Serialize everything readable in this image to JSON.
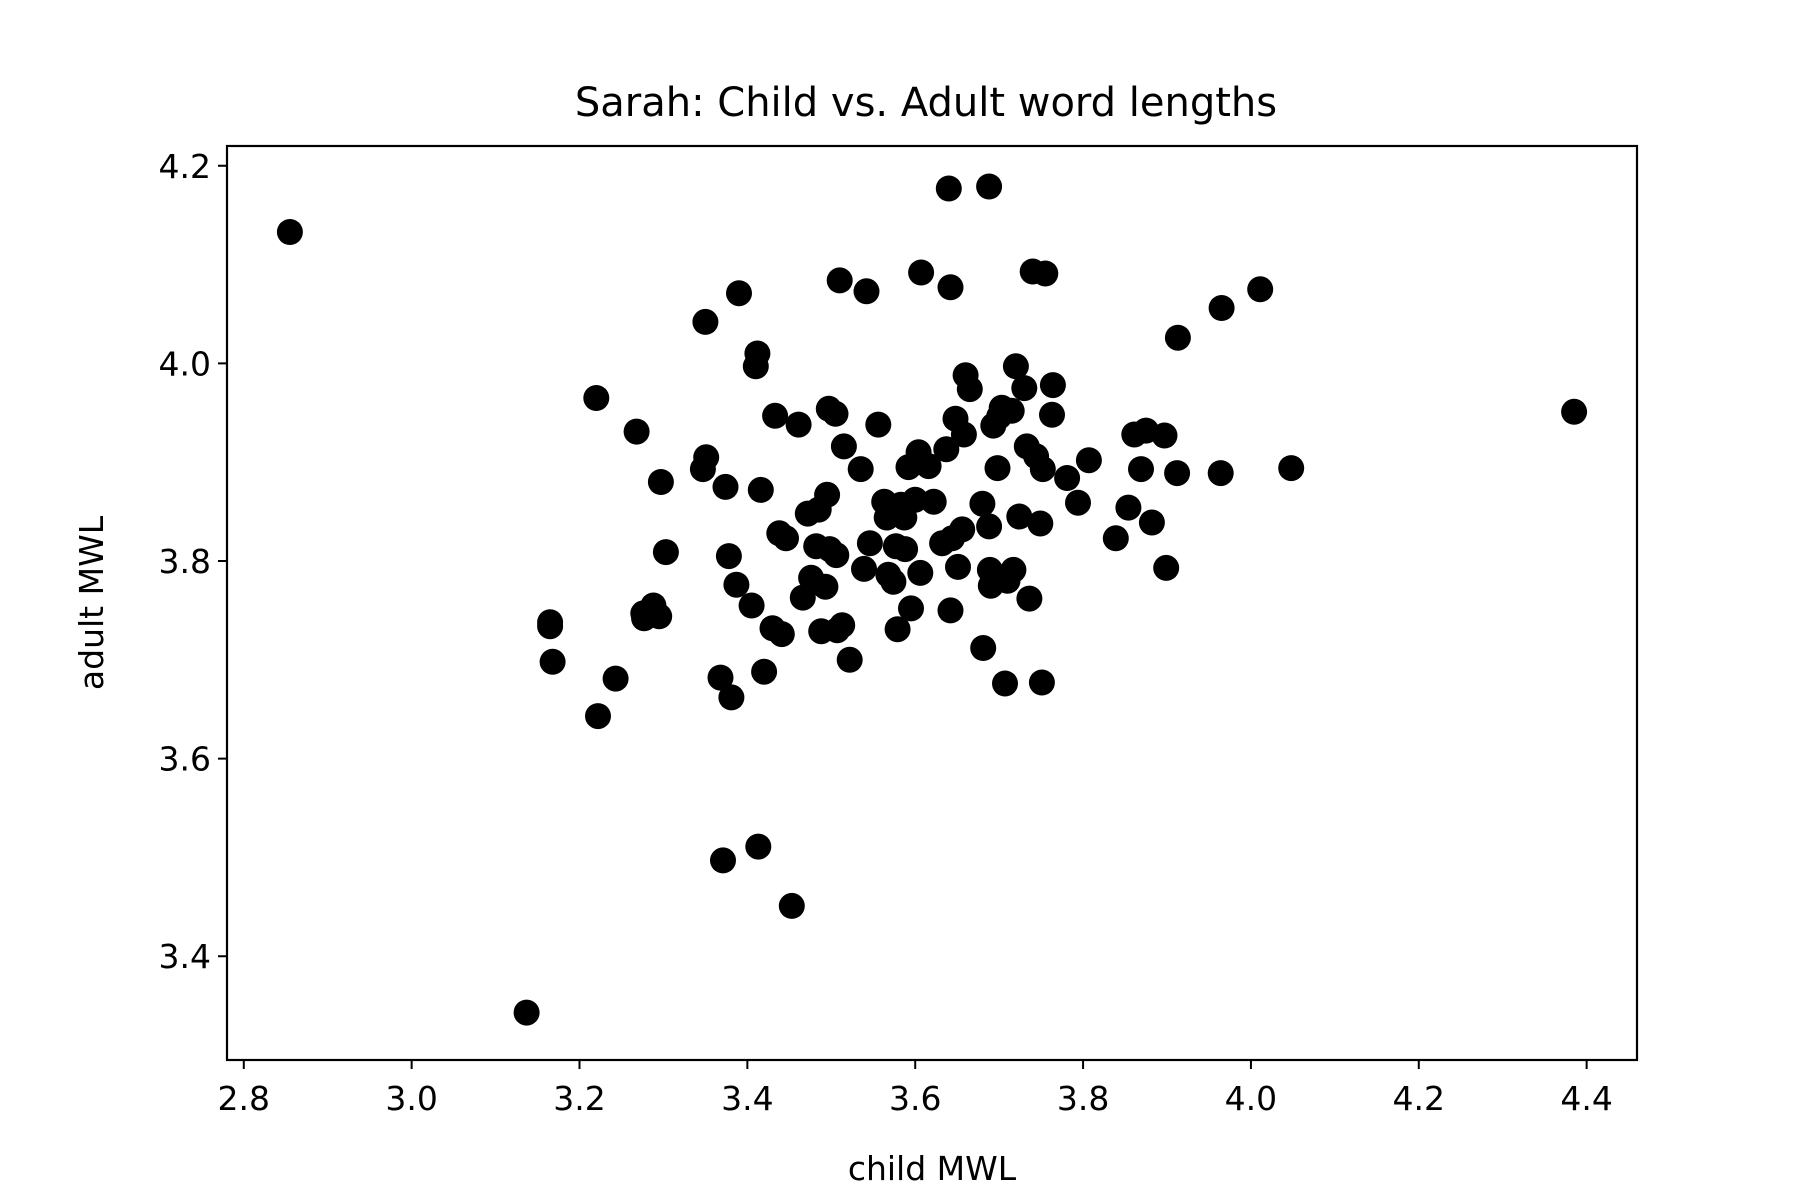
{
  "chart_data": {
    "type": "scatter",
    "title": "Sarah: Child vs. Adult word lengths",
    "xlabel": "child MWL",
    "ylabel": "adult MWL",
    "xlim": [
      2.78,
      4.46
    ],
    "ylim": [
      3.295,
      4.22
    ],
    "xticks": [
      "2.8",
      "3.0",
      "3.2",
      "3.4",
      "3.6",
      "3.8",
      "4.0",
      "4.2",
      "4.4"
    ],
    "yticks": [
      "3.4",
      "3.6",
      "3.8",
      "4.0",
      "4.2"
    ],
    "grid": false,
    "marker_color": "#000000",
    "points": [
      [
        2.855,
        4.133
      ],
      [
        3.137,
        3.343
      ],
      [
        3.165,
        3.738
      ],
      [
        3.165,
        3.734
      ],
      [
        3.168,
        3.698
      ],
      [
        3.22,
        3.965
      ],
      [
        3.222,
        3.643
      ],
      [
        3.243,
        3.681
      ],
      [
        3.268,
        3.931
      ],
      [
        3.276,
        3.747
      ],
      [
        3.277,
        3.742
      ],
      [
        3.288,
        3.755
      ],
      [
        3.295,
        3.744
      ],
      [
        3.297,
        3.88
      ],
      [
        3.303,
        3.809
      ],
      [
        3.347,
        3.893
      ],
      [
        3.35,
        4.042
      ],
      [
        3.351,
        3.905
      ],
      [
        3.368,
        3.682
      ],
      [
        3.371,
        3.497
      ],
      [
        3.374,
        3.875
      ],
      [
        3.378,
        3.805
      ],
      [
        3.381,
        3.662
      ],
      [
        3.387,
        3.776
      ],
      [
        3.39,
        4.071
      ],
      [
        3.405,
        3.755
      ],
      [
        3.41,
        3.997
      ],
      [
        3.412,
        4.01
      ],
      [
        3.413,
        3.511
      ],
      [
        3.416,
        3.872
      ],
      [
        3.42,
        3.688
      ],
      [
        3.43,
        3.732
      ],
      [
        3.433,
        3.947
      ],
      [
        3.438,
        3.828
      ],
      [
        3.441,
        3.726
      ],
      [
        3.446,
        3.823
      ],
      [
        3.453,
        3.451
      ],
      [
        3.461,
        3.938
      ],
      [
        3.466,
        3.763
      ],
      [
        3.472,
        3.848
      ],
      [
        3.476,
        3.783
      ],
      [
        3.482,
        3.815
      ],
      [
        3.485,
        3.852
      ],
      [
        3.488,
        3.729
      ],
      [
        3.493,
        3.774
      ],
      [
        3.495,
        3.867
      ],
      [
        3.497,
        3.954
      ],
      [
        3.498,
        3.812
      ],
      [
        3.505,
        3.949
      ],
      [
        3.506,
        3.806
      ],
      [
        3.507,
        3.73
      ],
      [
        3.51,
        4.084
      ],
      [
        3.513,
        3.735
      ],
      [
        3.515,
        3.916
      ],
      [
        3.522,
        3.7
      ],
      [
        3.535,
        3.893
      ],
      [
        3.539,
        3.792
      ],
      [
        3.542,
        4.073
      ],
      [
        3.546,
        3.818
      ],
      [
        3.556,
        3.938
      ],
      [
        3.563,
        3.86
      ],
      [
        3.566,
        3.844
      ],
      [
        3.568,
        3.786
      ],
      [
        3.574,
        3.779
      ],
      [
        3.577,
        3.815
      ],
      [
        3.579,
        3.731
      ],
      [
        3.583,
        3.857
      ],
      [
        3.587,
        3.844
      ],
      [
        3.588,
        3.812
      ],
      [
        3.592,
        3.895
      ],
      [
        3.595,
        3.752
      ],
      [
        3.6,
        3.862
      ],
      [
        3.604,
        3.91
      ],
      [
        3.606,
        3.788
      ],
      [
        3.607,
        4.092
      ],
      [
        3.616,
        3.896
      ],
      [
        3.622,
        3.86
      ],
      [
        3.632,
        3.818
      ],
      [
        3.637,
        3.913
      ],
      [
        3.64,
        4.177
      ],
      [
        3.642,
        3.75
      ],
      [
        3.642,
        4.077
      ],
      [
        3.644,
        3.823
      ],
      [
        3.648,
        3.944
      ],
      [
        3.651,
        3.794
      ],
      [
        3.656,
        3.832
      ],
      [
        3.658,
        3.928
      ],
      [
        3.66,
        3.988
      ],
      [
        3.665,
        3.974
      ],
      [
        3.68,
        3.858
      ],
      [
        3.681,
        3.712
      ],
      [
        3.688,
        4.179
      ],
      [
        3.688,
        3.835
      ],
      [
        3.689,
        3.791
      ],
      [
        3.69,
        3.775
      ],
      [
        3.693,
        3.937
      ],
      [
        3.698,
        3.894
      ],
      [
        3.7,
        3.946
      ],
      [
        3.703,
        3.955
      ],
      [
        3.707,
        3.676
      ],
      [
        3.71,
        3.78
      ],
      [
        3.715,
        3.952
      ],
      [
        3.717,
        3.791
      ],
      [
        3.72,
        3.997
      ],
      [
        3.724,
        3.845
      ],
      [
        3.73,
        3.975
      ],
      [
        3.733,
        3.916
      ],
      [
        3.736,
        3.762
      ],
      [
        3.74,
        4.093
      ],
      [
        3.744,
        3.906
      ],
      [
        3.749,
        3.838
      ],
      [
        3.751,
        3.677
      ],
      [
        3.752,
        3.893
      ],
      [
        3.755,
        4.091
      ],
      [
        3.763,
        3.948
      ],
      [
        3.764,
        3.978
      ],
      [
        3.781,
        3.884
      ],
      [
        3.794,
        3.859
      ],
      [
        3.807,
        3.902
      ],
      [
        3.839,
        3.823
      ],
      [
        3.854,
        3.854
      ],
      [
        3.861,
        3.928
      ],
      [
        3.869,
        3.893
      ],
      [
        3.875,
        3.932
      ],
      [
        3.882,
        3.839
      ],
      [
        3.897,
        3.927
      ],
      [
        3.899,
        3.793
      ],
      [
        3.912,
        3.889
      ],
      [
        3.913,
        4.026
      ],
      [
        3.964,
        3.889
      ],
      [
        3.965,
        4.056
      ],
      [
        4.011,
        4.075
      ],
      [
        4.048,
        3.894
      ],
      [
        4.385,
        3.951
      ]
    ]
  }
}
